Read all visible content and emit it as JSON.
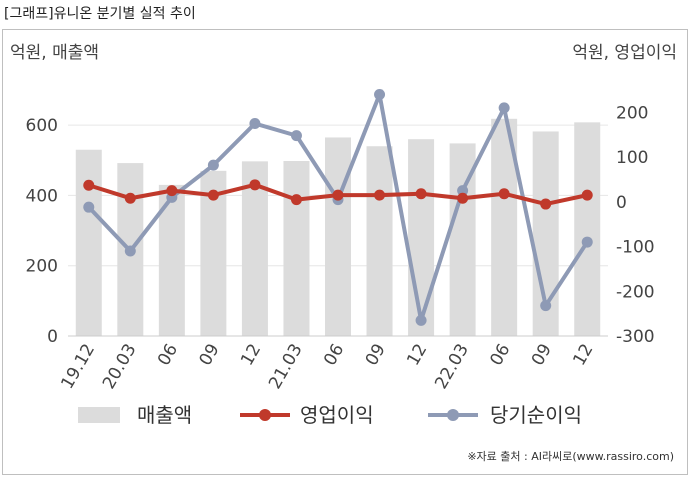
{
  "title": "[그래프]유니온 분기별 실적 추이",
  "source": "※자료 출처 : AI라씨로(www.rassiro.com)",
  "chart_data": {
    "type": "bar+line",
    "categories": [
      "19.12",
      "20.03",
      "06",
      "09",
      "12",
      "21.03",
      "06",
      "09",
      "12",
      "22.03",
      "06",
      "09",
      "12"
    ],
    "left_axis": {
      "label": "억원, 매출액",
      "ylim": [
        0,
        700
      ],
      "ticks": [
        0,
        200,
        400,
        600
      ]
    },
    "right_axis": {
      "label": "억원, 영업이익",
      "ylim": [
        -300,
        250
      ],
      "ticks": [
        -300,
        -200,
        -100,
        0,
        100,
        200
      ]
    },
    "series": [
      {
        "name": "매출액",
        "kind": "bar",
        "axis": "left",
        "color": "#dcdcdc",
        "values": [
          530,
          492,
          430,
          470,
          497,
          498,
          565,
          540,
          560,
          548,
          618,
          582,
          608
        ]
      },
      {
        "name": "영업이익",
        "kind": "line",
        "axis": "right",
        "color": "#c0392b",
        "values": [
          37,
          8,
          25,
          15,
          38,
          5,
          15,
          15,
          18,
          8,
          18,
          -5,
          15
        ]
      },
      {
        "name": "당기순이익",
        "kind": "line",
        "axis": "right",
        "color": "#8e9ab5",
        "values": [
          -12,
          -110,
          10,
          82,
          175,
          148,
          5,
          240,
          -265,
          25,
          210,
          -232,
          -90
        ]
      }
    ],
    "grid": true,
    "legend": "bottom"
  }
}
